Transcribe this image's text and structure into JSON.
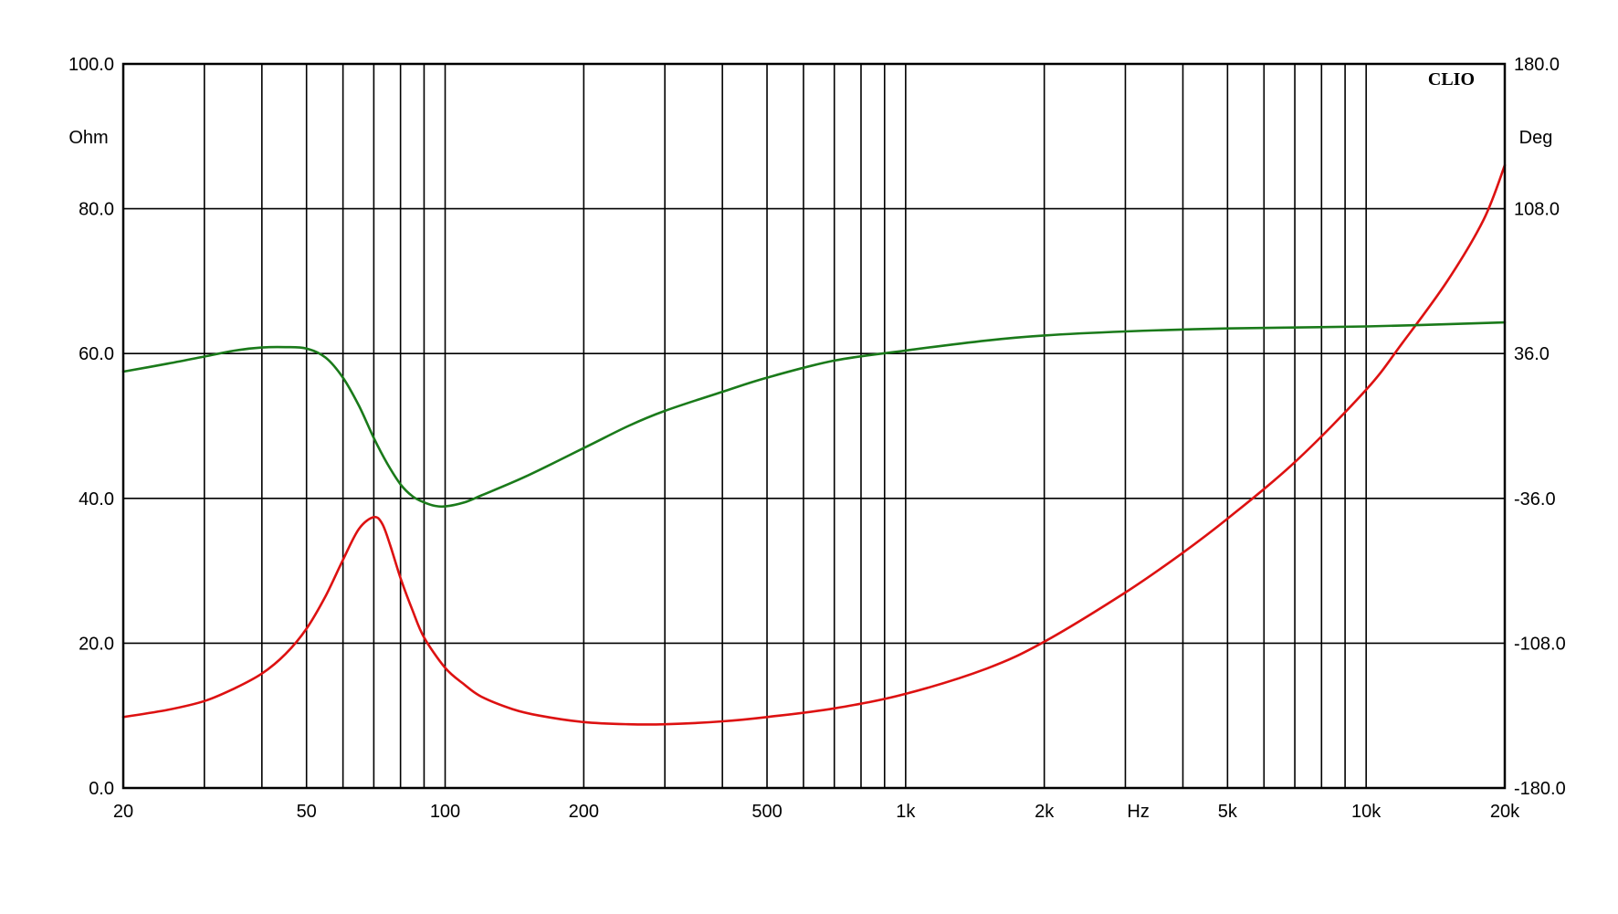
{
  "chart_data": {
    "type": "line",
    "brand": "CLIO",
    "x_scale": "log",
    "xlim": [
      20,
      20000
    ],
    "x_ticks": [
      {
        "value": 20,
        "label": "20"
      },
      {
        "value": 50,
        "label": "50"
      },
      {
        "value": 100,
        "label": "100"
      },
      {
        "value": 200,
        "label": "200"
      },
      {
        "value": 500,
        "label": "500"
      },
      {
        "value": 1000,
        "label": "1k"
      },
      {
        "value": 2000,
        "label": "2k"
      },
      {
        "value": 5000,
        "label": "5k"
      },
      {
        "value": 10000,
        "label": "10k"
      },
      {
        "value": 20000,
        "label": "20k"
      }
    ],
    "x_unit_label": "Hz",
    "x_unit_at": 3200,
    "y_left": {
      "label": "Ohm",
      "lim": [
        0,
        100
      ],
      "ticks": [
        {
          "value": 0,
          "label": "0.0"
        },
        {
          "value": 20,
          "label": "20.0"
        },
        {
          "value": 40,
          "label": "40.0"
        },
        {
          "value": 60,
          "label": "60.0"
        },
        {
          "value": 80,
          "label": "80.0"
        },
        {
          "value": 100,
          "label": "100.0"
        }
      ]
    },
    "y_right": {
      "label": "Deg",
      "lim": [
        -180,
        180
      ],
      "ticks": [
        {
          "value": -180,
          "label": "-180.0"
        },
        {
          "value": -108,
          "label": "-108.0"
        },
        {
          "value": -36,
          "label": "-36.0"
        },
        {
          "value": 36,
          "label": "36.0"
        },
        {
          "value": 108,
          "label": "108.0"
        },
        {
          "value": 180,
          "label": "180.0"
        }
      ]
    },
    "grid": true,
    "series": [
      {
        "axis": "left",
        "color": "#dd1111",
        "x": [
          20,
          25,
          30,
          35,
          40,
          45,
          50,
          55,
          60,
          65,
          70,
          73,
          76,
          80,
          85,
          90,
          100,
          110,
          120,
          140,
          160,
          200,
          250,
          300,
          400,
          500,
          700,
          1000,
          1500,
          2000,
          3000,
          4000,
          5000,
          7000,
          10000,
          12000,
          15000,
          18000,
          20000
        ],
        "y": [
          9.8,
          10.8,
          12.0,
          13.8,
          15.8,
          18.5,
          22.0,
          26.5,
          31.5,
          35.8,
          37.4,
          36.5,
          33.5,
          29.0,
          24.5,
          20.8,
          16.6,
          14.3,
          12.6,
          10.9,
          10.0,
          9.1,
          8.8,
          8.8,
          9.2,
          9.8,
          11.0,
          13.0,
          16.5,
          20.2,
          27.0,
          32.5,
          37.2,
          45.0,
          55.0,
          61.5,
          70.0,
          78.5,
          86.0
        ]
      },
      {
        "axis": "right",
        "color": "#1a7a1a",
        "x": [
          20,
          25,
          30,
          35,
          40,
          45,
          50,
          55,
          60,
          65,
          70,
          75,
          80,
          85,
          90,
          95,
          100,
          110,
          120,
          150,
          200,
          250,
          300,
          400,
          500,
          700,
          1000,
          1500,
          2000,
          3000,
          5000,
          10000,
          20000
        ],
        "y": [
          27,
          31,
          34.5,
          37.5,
          39,
          39.2,
          38.5,
          34,
          24,
          10,
          -6,
          -19,
          -29,
          -35,
          -38,
          -39.7,
          -40,
          -38,
          -34.5,
          -25,
          -11,
          0,
          7.5,
          17,
          24,
          32.5,
          37.5,
          42.5,
          45,
          47,
          48.5,
          49.5,
          51.5
        ]
      }
    ]
  }
}
